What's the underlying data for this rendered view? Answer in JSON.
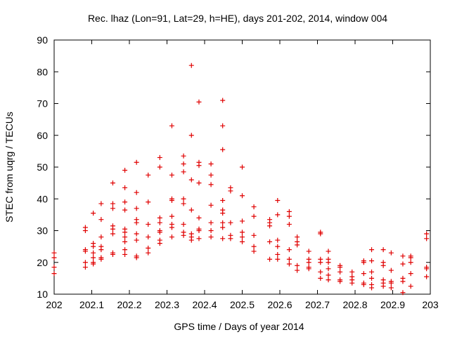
{
  "chart_data": {
    "type": "scatter",
    "title": "Rec. lhaz (Lon=91, Lat=29, h=HE), days 201-202, 2014, window 004",
    "xlabel": "GPS time / Days of year 2014",
    "ylabel": "STEC from uqrg / TECUs",
    "xlim": [
      202,
      203
    ],
    "ylim": [
      10,
      90
    ],
    "x_ticks": [
      "202",
      "202.1",
      "202.2",
      "202.3",
      "202.4",
      "202.5",
      "202.6",
      "202.7",
      "202.8",
      "202.9",
      "203"
    ],
    "y_ticks": [
      "10",
      "20",
      "30",
      "40",
      "50",
      "60",
      "70",
      "80",
      "90"
    ],
    "grid": false,
    "marker": "plus",
    "color": "#e00000",
    "points": [
      [
        202.0,
        23.0
      ],
      [
        202.0,
        21.5
      ],
      [
        202.0,
        18.5
      ],
      [
        202.0,
        16.5
      ],
      [
        202.083,
        31.0
      ],
      [
        202.083,
        30.0
      ],
      [
        202.083,
        24.0
      ],
      [
        202.083,
        23.5
      ],
      [
        202.083,
        20.0
      ],
      [
        202.083,
        18.5
      ],
      [
        202.104,
        35.5
      ],
      [
        202.104,
        26.0
      ],
      [
        202.104,
        25.0
      ],
      [
        202.104,
        23.0
      ],
      [
        202.104,
        21.5
      ],
      [
        202.104,
        20.0
      ],
      [
        202.104,
        19.5
      ],
      [
        202.125,
        38.5
      ],
      [
        202.125,
        33.5
      ],
      [
        202.125,
        28.0
      ],
      [
        202.125,
        25.0
      ],
      [
        202.125,
        24.0
      ],
      [
        202.125,
        21.5
      ],
      [
        202.125,
        21.0
      ],
      [
        202.156,
        45.0
      ],
      [
        202.156,
        38.5
      ],
      [
        202.156,
        37.0
      ],
      [
        202.156,
        31.5
      ],
      [
        202.156,
        30.5
      ],
      [
        202.156,
        29.0
      ],
      [
        202.156,
        23.0
      ],
      [
        202.156,
        22.5
      ],
      [
        202.188,
        49.0
      ],
      [
        202.188,
        43.5
      ],
      [
        202.188,
        39.0
      ],
      [
        202.188,
        36.5
      ],
      [
        202.188,
        30.5
      ],
      [
        202.188,
        29.5
      ],
      [
        202.188,
        28.0
      ],
      [
        202.188,
        26.5
      ],
      [
        202.188,
        24.0
      ],
      [
        202.188,
        22.5
      ],
      [
        202.219,
        51.5
      ],
      [
        202.219,
        42.0
      ],
      [
        202.219,
        37.0
      ],
      [
        202.219,
        33.5
      ],
      [
        202.219,
        32.5
      ],
      [
        202.219,
        29.0
      ],
      [
        202.219,
        27.0
      ],
      [
        202.219,
        22.0
      ],
      [
        202.219,
        21.5
      ],
      [
        202.25,
        47.5
      ],
      [
        202.25,
        39.0
      ],
      [
        202.25,
        32.0
      ],
      [
        202.25,
        28.0
      ],
      [
        202.25,
        24.5
      ],
      [
        202.25,
        23.0
      ],
      [
        202.281,
        53.0
      ],
      [
        202.281,
        50.0
      ],
      [
        202.281,
        34.0
      ],
      [
        202.281,
        32.5
      ],
      [
        202.281,
        30.0
      ],
      [
        202.281,
        29.5
      ],
      [
        202.281,
        27.0
      ],
      [
        202.281,
        26.0
      ],
      [
        202.313,
        63.0
      ],
      [
        202.313,
        47.5
      ],
      [
        202.313,
        40.0
      ],
      [
        202.313,
        39.5
      ],
      [
        202.313,
        34.5
      ],
      [
        202.313,
        32.0
      ],
      [
        202.313,
        31.0
      ],
      [
        202.313,
        28.0
      ],
      [
        202.344,
        53.5
      ],
      [
        202.344,
        51.0
      ],
      [
        202.344,
        48.5
      ],
      [
        202.344,
        40.0
      ],
      [
        202.344,
        38.5
      ],
      [
        202.344,
        32.0
      ],
      [
        202.344,
        29.5
      ],
      [
        202.344,
        28.5
      ],
      [
        202.365,
        82.0
      ],
      [
        202.365,
        60.0
      ],
      [
        202.365,
        46.0
      ],
      [
        202.365,
        36.5
      ],
      [
        202.365,
        29.0
      ],
      [
        202.365,
        28.0
      ],
      [
        202.365,
        27.0
      ],
      [
        202.385,
        70.5
      ],
      [
        202.385,
        51.5
      ],
      [
        202.385,
        50.5
      ],
      [
        202.385,
        45.0
      ],
      [
        202.385,
        34.0
      ],
      [
        202.385,
        30.5
      ],
      [
        202.385,
        30.0
      ],
      [
        202.385,
        27.5
      ],
      [
        202.417,
        51.0
      ],
      [
        202.417,
        47.5
      ],
      [
        202.417,
        44.5
      ],
      [
        202.417,
        38.0
      ],
      [
        202.417,
        32.5
      ],
      [
        202.417,
        30.0
      ],
      [
        202.417,
        28.0
      ],
      [
        202.448,
        71.0
      ],
      [
        202.448,
        63.0
      ],
      [
        202.448,
        55.5
      ],
      [
        202.448,
        39.5
      ],
      [
        202.448,
        36.5
      ],
      [
        202.448,
        35.5
      ],
      [
        202.448,
        32.5
      ],
      [
        202.448,
        31.0
      ],
      [
        202.448,
        27.5
      ],
      [
        202.469,
        43.5
      ],
      [
        202.469,
        42.5
      ],
      [
        202.469,
        32.5
      ],
      [
        202.469,
        28.5
      ],
      [
        202.469,
        27.5
      ],
      [
        202.5,
        50.0
      ],
      [
        202.5,
        41.0
      ],
      [
        202.5,
        33.0
      ],
      [
        202.5,
        29.5
      ],
      [
        202.5,
        28.0
      ],
      [
        202.5,
        26.5
      ],
      [
        202.531,
        37.5
      ],
      [
        202.531,
        34.5
      ],
      [
        202.531,
        28.5
      ],
      [
        202.531,
        25.0
      ],
      [
        202.531,
        23.5
      ],
      [
        202.573,
        33.5
      ],
      [
        202.573,
        32.5
      ],
      [
        202.573,
        31.5
      ],
      [
        202.573,
        26.5
      ],
      [
        202.573,
        21.0
      ],
      [
        202.594,
        39.5
      ],
      [
        202.594,
        35.0
      ],
      [
        202.594,
        27.0
      ],
      [
        202.594,
        25.0
      ],
      [
        202.594,
        22.5
      ],
      [
        202.594,
        21.0
      ],
      [
        202.625,
        36.0
      ],
      [
        202.625,
        34.5
      ],
      [
        202.625,
        32.0
      ],
      [
        202.625,
        24.0
      ],
      [
        202.625,
        21.0
      ],
      [
        202.625,
        19.5
      ],
      [
        202.646,
        28.0
      ],
      [
        202.646,
        26.5
      ],
      [
        202.646,
        25.5
      ],
      [
        202.646,
        19.0
      ],
      [
        202.646,
        17.5
      ],
      [
        202.677,
        23.5
      ],
      [
        202.677,
        21.0
      ],
      [
        202.677,
        20.0
      ],
      [
        202.677,
        18.5
      ],
      [
        202.677,
        18.0
      ],
      [
        202.708,
        29.5
      ],
      [
        202.708,
        29.0
      ],
      [
        202.708,
        21.0
      ],
      [
        202.708,
        20.0
      ],
      [
        202.708,
        17.0
      ],
      [
        202.708,
        15.0
      ],
      [
        202.729,
        23.5
      ],
      [
        202.729,
        21.0
      ],
      [
        202.729,
        20.0
      ],
      [
        202.729,
        18.0
      ],
      [
        202.729,
        16.0
      ],
      [
        202.729,
        14.5
      ],
      [
        202.76,
        19.0
      ],
      [
        202.76,
        18.5
      ],
      [
        202.76,
        17.0
      ],
      [
        202.76,
        14.5
      ],
      [
        202.76,
        14.0
      ],
      [
        202.792,
        17.0
      ],
      [
        202.792,
        15.5
      ],
      [
        202.792,
        14.5
      ],
      [
        202.792,
        13.5
      ],
      [
        202.823,
        20.5
      ],
      [
        202.823,
        20.0
      ],
      [
        202.823,
        16.5
      ],
      [
        202.823,
        13.5
      ],
      [
        202.823,
        13.0
      ],
      [
        202.844,
        24.0
      ],
      [
        202.844,
        20.5
      ],
      [
        202.844,
        17.0
      ],
      [
        202.844,
        15.0
      ],
      [
        202.844,
        13.0
      ],
      [
        202.844,
        12.0
      ],
      [
        202.875,
        24.0
      ],
      [
        202.875,
        20.0
      ],
      [
        202.875,
        19.0
      ],
      [
        202.875,
        14.5
      ],
      [
        202.875,
        13.5
      ],
      [
        202.875,
        12.5
      ],
      [
        202.896,
        23.0
      ],
      [
        202.896,
        17.5
      ],
      [
        202.896,
        14.0
      ],
      [
        202.896,
        13.5
      ],
      [
        202.896,
        12.0
      ],
      [
        202.927,
        22.0
      ],
      [
        202.927,
        19.5
      ],
      [
        202.927,
        15.0
      ],
      [
        202.927,
        14.0
      ],
      [
        202.927,
        10.5
      ],
      [
        202.948,
        22.0
      ],
      [
        202.948,
        21.5
      ],
      [
        202.948,
        20.0
      ],
      [
        202.948,
        16.5
      ],
      [
        202.948,
        12.5
      ],
      [
        202.99,
        29.0
      ],
      [
        202.99,
        27.5
      ],
      [
        202.99,
        18.5
      ],
      [
        202.99,
        18.0
      ],
      [
        202.99,
        15.5
      ]
    ]
  }
}
